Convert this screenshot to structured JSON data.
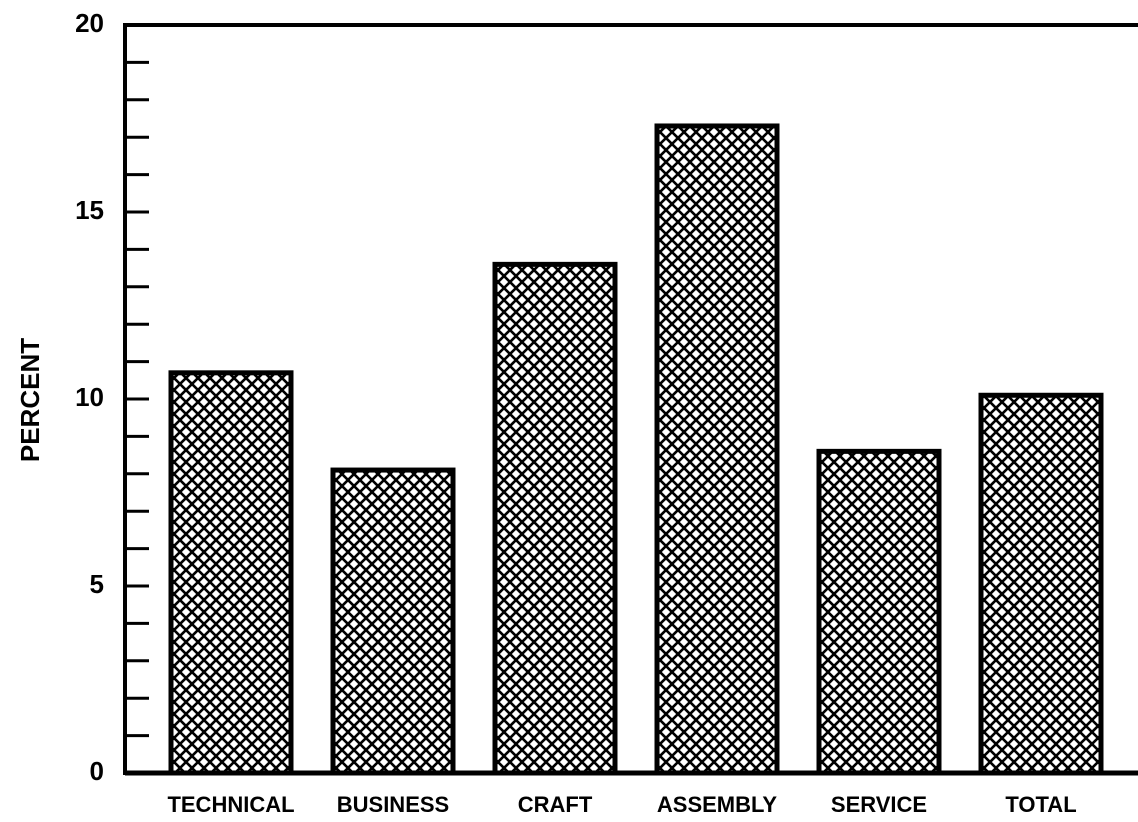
{
  "chart_data": {
    "type": "bar",
    "y_label": "PERCENT",
    "categories": [
      "TECHNICAL",
      "BUSINESS",
      "CRAFT",
      "ASSEMBLY",
      "SERVICE",
      "TOTAL"
    ],
    "values": [
      10.7,
      8.1,
      13.6,
      17.3,
      8.6,
      10.1
    ],
    "color": "#000000",
    "ylim": [
      0,
      20
    ],
    "yticks": [
      0,
      5,
      10,
      15,
      20
    ],
    "minor_yticks": [
      1,
      2,
      3,
      4,
      6,
      7,
      8,
      9,
      11,
      12,
      13,
      14,
      16,
      17,
      18,
      19
    ],
    "grid": false
  }
}
